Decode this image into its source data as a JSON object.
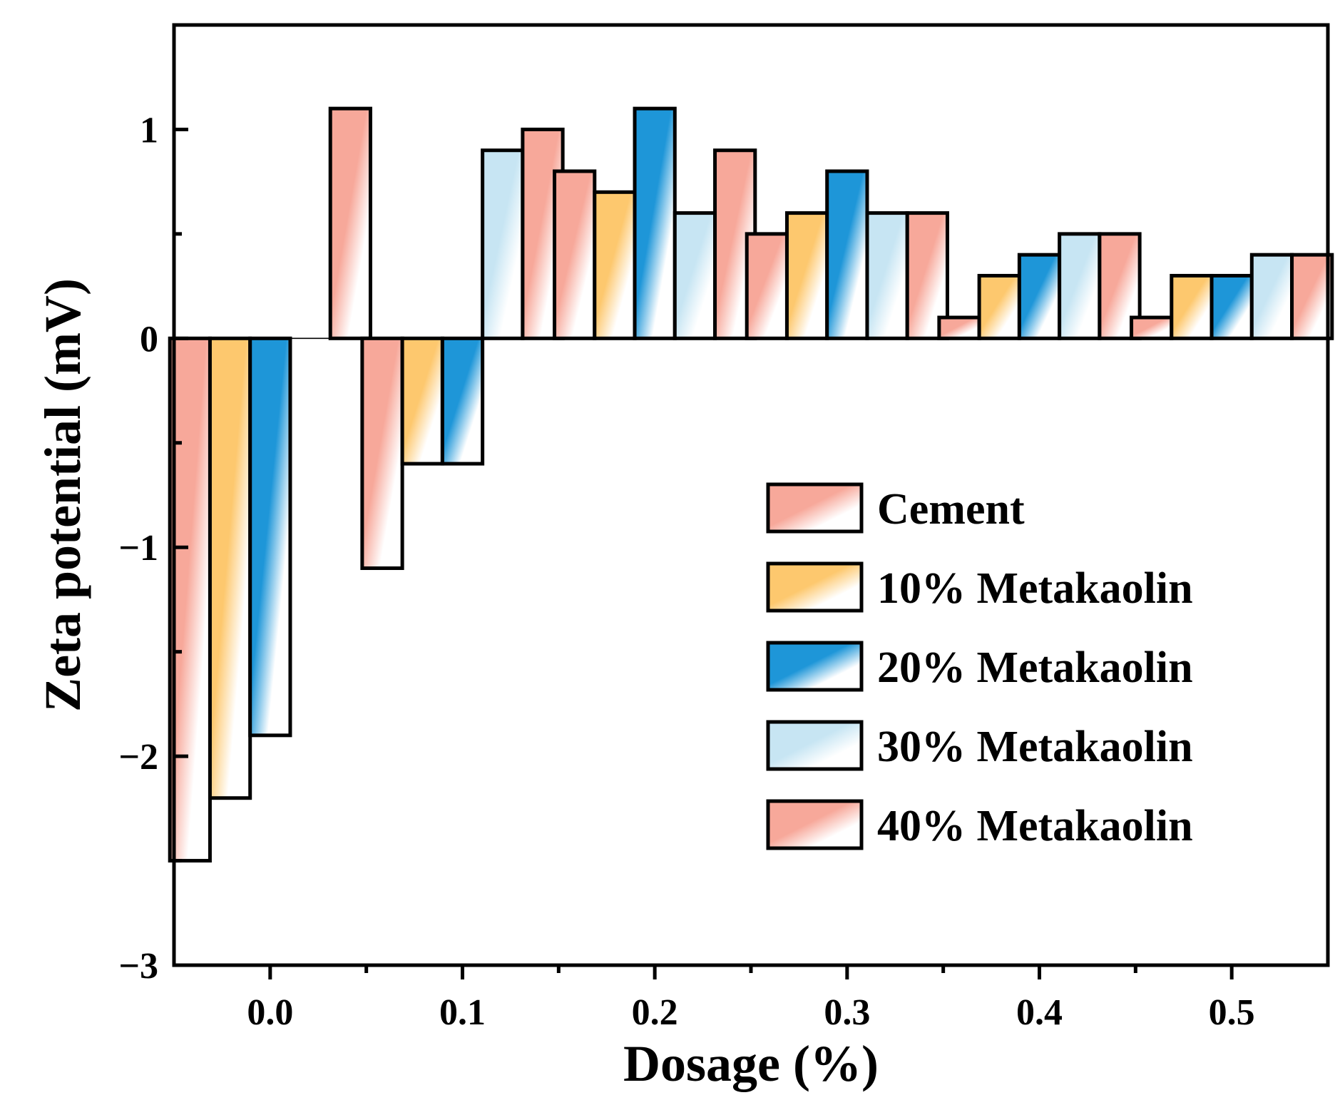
{
  "chart_data": {
    "type": "bar",
    "title": "",
    "xlabel": "Dosage (%)",
    "ylabel": "Zeta potential (mV)",
    "categories": [
      "0.0",
      "0.1",
      "0.2",
      "0.3",
      "0.4",
      "0.5"
    ],
    "x": [
      0.0,
      0.1,
      0.2,
      0.3,
      0.4,
      0.5
    ],
    "xlim": [
      -0.05,
      0.55
    ],
    "ylim": [
      -3,
      1.5
    ],
    "xticks_major": [
      0.0,
      0.1,
      0.2,
      0.3,
      0.4,
      0.5
    ],
    "xticks_minor": [
      0.05,
      0.15,
      0.25,
      0.35,
      0.45
    ],
    "yticks_major": [
      -3,
      -2,
      -1,
      0,
      1
    ],
    "yticks_minor": [
      -2.5,
      -1.5,
      -0.5,
      0.5
    ],
    "ytick_labels": [
      "−3",
      "−2",
      "−1",
      "0",
      "1"
    ],
    "legend_position": "center-right",
    "grid": false,
    "series": [
      {
        "name": "Cement",
        "values": [
          -2.5,
          -1.1,
          0.8,
          0.5,
          0.1,
          0.1
        ],
        "color": "#f7a89a",
        "gradient": "diagonal"
      },
      {
        "name": "10% Metakaolin",
        "values": [
          -2.2,
          -0.6,
          0.7,
          0.6,
          0.3,
          0.3
        ],
        "color": "#fdc86e",
        "gradient": "diagonal"
      },
      {
        "name": "20% Metakaolin",
        "values": [
          -1.9,
          -0.6,
          1.1,
          0.8,
          0.4,
          0.3
        ],
        "color": "#1e96d8",
        "gradient": "diagonal"
      },
      {
        "name": "30% Metakaolin",
        "values": [
          0.0,
          0.9,
          0.6,
          0.6,
          0.5,
          0.4
        ],
        "color": "#c7e5f3",
        "gradient": "diagonal"
      },
      {
        "name": "40% Metakaolin",
        "values": [
          1.1,
          1.0,
          0.9,
          0.6,
          0.5,
          0.4
        ],
        "color": "#f7a89a",
        "gradient": "diagonal"
      }
    ]
  }
}
